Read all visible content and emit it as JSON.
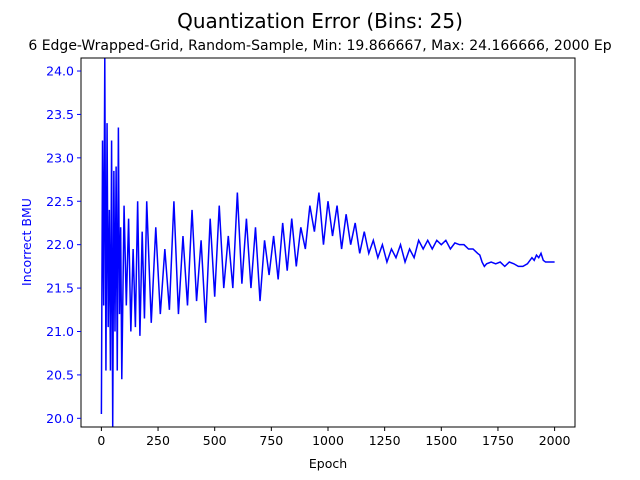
{
  "chart_data": {
    "type": "line",
    "title": "Quantization Error (Bins: 25)",
    "subtitle": "6 Edge-Wrapped-Grid, Random-Sample, Min: 19.866667, Max: 24.166666, 2000 Ep",
    "xlabel": "Epoch",
    "ylabel": "Incorrect BMU",
    "xlim": [
      -90,
      2090
    ],
    "ylim": [
      19.9,
      24.15
    ],
    "x_ticks": [
      0,
      250,
      500,
      750,
      1000,
      1250,
      1500,
      1750,
      2000
    ],
    "x_tick_labels": [
      "0",
      "250",
      "500",
      "750",
      "1000",
      "1250",
      "1500",
      "1750",
      "2000"
    ],
    "y_ticks": [
      20.0,
      20.5,
      21.0,
      21.5,
      22.0,
      22.5,
      23.0,
      23.5,
      24.0
    ],
    "y_tick_labels": [
      "20.0",
      "20.5",
      "21.0",
      "21.5",
      "22.0",
      "22.5",
      "23.0",
      "23.5",
      "24.0"
    ],
    "grid": false,
    "line_color": "#0000ff",
    "ylabel_color": "#0000ff",
    "series": [
      {
        "x": [
          0,
          5,
          10,
          15,
          20,
          25,
          30,
          35,
          40,
          45,
          50,
          55,
          60,
          65,
          70,
          75,
          80,
          85,
          90,
          100,
          110,
          120,
          130,
          140,
          150,
          160,
          170,
          180,
          190,
          200,
          220,
          240,
          260,
          280,
          300,
          320,
          340,
          360,
          380,
          400,
          420,
          440,
          460,
          480,
          500,
          520,
          540,
          560,
          580,
          600,
          620,
          640,
          660,
          680,
          700,
          720,
          740,
          760,
          780,
          800,
          820,
          840,
          860,
          880,
          900,
          920,
          940,
          960,
          980,
          1000,
          1020,
          1040,
          1060,
          1080,
          1100,
          1120,
          1140,
          1160,
          1180,
          1200,
          1220,
          1240,
          1260,
          1280,
          1300,
          1320,
          1340,
          1360,
          1380,
          1400,
          1420,
          1440,
          1460,
          1480,
          1500,
          1520,
          1540,
          1560,
          1580,
          1600,
          1620,
          1640,
          1660,
          1670,
          1680,
          1690,
          1700,
          1720,
          1740,
          1760,
          1780,
          1800,
          1820,
          1840,
          1860,
          1880,
          1900,
          1910,
          1920,
          1930,
          1940,
          1950,
          1960,
          1980,
          2000
        ],
        "values": [
          20.05,
          23.2,
          21.3,
          24.17,
          20.55,
          23.4,
          21.05,
          22.4,
          20.55,
          23.2,
          19.9,
          22.85,
          21.0,
          22.9,
          20.55,
          23.35,
          21.2,
          22.2,
          20.45,
          22.45,
          21.3,
          22.3,
          21.0,
          21.95,
          21.05,
          22.5,
          20.95,
          22.15,
          21.15,
          22.5,
          21.1,
          22.2,
          21.2,
          21.95,
          21.25,
          22.5,
          21.2,
          22.1,
          21.3,
          22.4,
          21.35,
          22.05,
          21.1,
          22.3,
          21.4,
          22.45,
          21.5,
          22.1,
          21.5,
          22.6,
          21.55,
          22.3,
          21.5,
          22.2,
          21.35,
          22.05,
          21.65,
          22.1,
          21.6,
          22.25,
          21.7,
          22.3,
          21.75,
          22.2,
          21.95,
          22.45,
          22.15,
          22.6,
          22.0,
          22.5,
          22.1,
          22.45,
          21.95,
          22.35,
          22.0,
          22.25,
          21.9,
          22.15,
          21.9,
          22.05,
          21.85,
          22.0,
          21.8,
          21.95,
          21.85,
          22.0,
          21.8,
          21.95,
          21.85,
          22.05,
          21.95,
          22.05,
          21.95,
          22.05,
          22.0,
          22.05,
          21.95,
          22.02,
          22.0,
          22.0,
          21.95,
          21.95,
          21.9,
          21.88,
          21.8,
          21.75,
          21.78,
          21.8,
          21.78,
          21.8,
          21.75,
          21.8,
          21.78,
          21.75,
          21.75,
          21.78,
          21.85,
          21.82,
          21.88,
          21.85,
          21.9,
          21.82,
          21.8,
          21.8,
          21.8
        ]
      }
    ]
  }
}
